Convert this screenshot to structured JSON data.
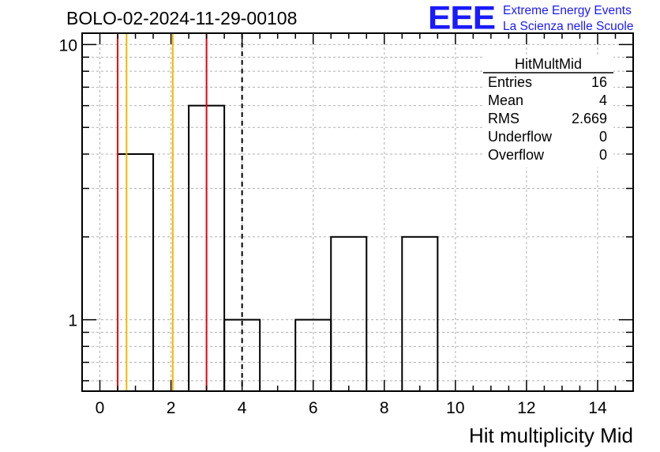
{
  "header": {
    "run_title": "BOLO-02-2024-11-29-00108",
    "logo_text": "EEE",
    "logo_line1": "Extreme Energy Events",
    "logo_line2": "La Scienza nelle Scuole"
  },
  "stats": {
    "name": "HitMultMid",
    "rows": [
      {
        "label": "Entries",
        "value": "16"
      },
      {
        "label": "Mean",
        "value": "4"
      },
      {
        "label": "RMS",
        "value": "2.669"
      },
      {
        "label": "Underflow",
        "value": "0"
      },
      {
        "label": "Overflow",
        "value": "0"
      }
    ]
  },
  "chart_data": {
    "type": "histogram",
    "xlabel": "Hit multiplicity Mid",
    "ylabel": "",
    "xlim": [
      -0.5,
      15.0
    ],
    "ylim": [
      0.55,
      11.0
    ],
    "log_y": true,
    "grid": true,
    "x_ticks": [
      0,
      2,
      4,
      6,
      8,
      10,
      12,
      14
    ],
    "y_ticks": [
      1,
      10
    ],
    "bins": [
      {
        "lo": 0.5,
        "hi": 1.5,
        "count": 4
      },
      {
        "lo": 1.5,
        "hi": 2.5,
        "count": 0
      },
      {
        "lo": 2.5,
        "hi": 3.5,
        "count": 6
      },
      {
        "lo": 3.5,
        "hi": 4.5,
        "count": 1
      },
      {
        "lo": 4.5,
        "hi": 5.5,
        "count": 0
      },
      {
        "lo": 5.5,
        "hi": 6.5,
        "count": 1
      },
      {
        "lo": 6.5,
        "hi": 7.5,
        "count": 2
      },
      {
        "lo": 7.5,
        "hi": 8.5,
        "count": 0
      },
      {
        "lo": 8.5,
        "hi": 9.5,
        "count": 2
      }
    ],
    "vertical_lines": [
      {
        "x": 0.5,
        "color": "#e8000b",
        "style": "solid"
      },
      {
        "x": 0.75,
        "color": "#f5b800",
        "style": "solid"
      },
      {
        "x": 2.05,
        "color": "#f5b800",
        "style": "solid"
      },
      {
        "x": 3.0,
        "color": "#e8000b",
        "style": "solid"
      },
      {
        "x": 4.0,
        "color": "#000000",
        "style": "dashed"
      }
    ]
  }
}
